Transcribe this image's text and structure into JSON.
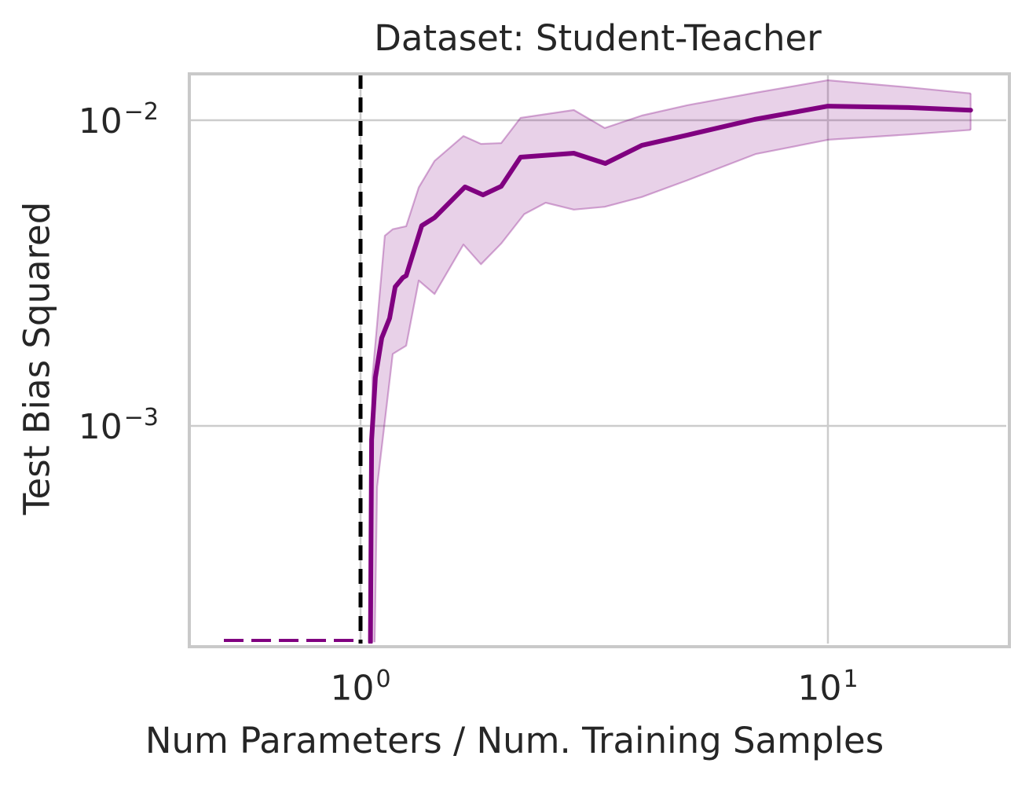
{
  "figure": {
    "background": "#ffffff",
    "text_color": "#262626"
  },
  "chart_data": {
    "type": "line",
    "title": "Dataset: Student-Teacher",
    "xlabel": "Num Parameters / Num. Training Samples",
    "ylabel": "Test Bias Squared",
    "x_scale": "log",
    "y_scale": "log",
    "xlim": [
      0.43,
      24.1
    ],
    "ylim": [
      0.000194,
      0.0142
    ],
    "grid": true,
    "legend": "none",
    "x_ticks": [
      {
        "value": 1,
        "label": "10⁰",
        "base": "10",
        "exp": "0"
      },
      {
        "value": 10,
        "label": "10¹",
        "base": "10",
        "exp": "1"
      }
    ],
    "y_ticks": [
      {
        "value": 0.01,
        "label": "10⁻²",
        "base": "10",
        "exp": "−2"
      },
      {
        "value": 0.001,
        "label": "10⁻³",
        "base": "10",
        "exp": "−3"
      }
    ],
    "colors": {
      "line": "#800080",
      "band_fill": "rgba(128,0,128,0.18)",
      "band_edge": "rgba(128,0,128,0.32)",
      "vline": "#000000",
      "grid": "#cccccc",
      "spine": "#c9c9c9"
    },
    "vline": {
      "x": 1.0,
      "style": "dashed",
      "color": "#000000",
      "meaning": "interpolation-threshold"
    },
    "series": [
      {
        "name": "test-bias-squared-mean",
        "color": "#800080",
        "points": [
          [
            1.05,
            0.000196
          ],
          [
            1.056,
            0.0009
          ],
          [
            1.076,
            0.00144
          ],
          [
            1.11,
            0.00194
          ],
          [
            1.154,
            0.00225
          ],
          [
            1.186,
            0.00285
          ],
          [
            1.233,
            0.00306
          ],
          [
            1.252,
            0.0031
          ],
          [
            1.352,
            0.00452
          ],
          [
            1.44,
            0.0048
          ],
          [
            1.673,
            0.00605
          ],
          [
            1.828,
            0.0057
          ],
          [
            2.0,
            0.00608
          ],
          [
            2.2,
            0.00757
          ],
          [
            2.86,
            0.0078
          ],
          [
            3.34,
            0.00722
          ],
          [
            4.0,
            0.00828
          ],
          [
            5.0,
            0.00894
          ],
          [
            6.96,
            0.01006
          ],
          [
            10.0,
            0.01112
          ],
          [
            14.9,
            0.011
          ],
          [
            20.2,
            0.01079
          ]
        ]
      }
    ],
    "band": {
      "name": "confidence-band",
      "upper": [
        [
          1.05,
          0.000196
        ],
        [
          1.06,
          0.00144
        ],
        [
          1.127,
          0.00419
        ],
        [
          1.172,
          0.0044
        ],
        [
          1.252,
          0.0045
        ],
        [
          1.332,
          0.00603
        ],
        [
          1.44,
          0.00736
        ],
        [
          1.66,
          0.00888
        ],
        [
          1.81,
          0.00837
        ],
        [
          2.0,
          0.00842
        ],
        [
          2.2,
          0.01018
        ],
        [
          2.86,
          0.0108
        ],
        [
          3.33,
          0.00943
        ],
        [
          4.0,
          0.01036
        ],
        [
          5.0,
          0.0112
        ],
        [
          7.0,
          0.0123
        ],
        [
          10.0,
          0.01352
        ],
        [
          15.0,
          0.0128
        ],
        [
          20.2,
          0.01224
        ]
      ],
      "lower": [
        [
          1.072,
          0.000196
        ],
        [
          1.085,
          0.000632
        ],
        [
          1.172,
          0.00172
        ],
        [
          1.252,
          0.00183
        ],
        [
          1.332,
          0.00299
        ],
        [
          1.44,
          0.0027
        ],
        [
          1.66,
          0.00392
        ],
        [
          1.81,
          0.00338
        ],
        [
          2.0,
          0.00395
        ],
        [
          2.24,
          0.00493
        ],
        [
          2.49,
          0.00537
        ],
        [
          2.86,
          0.0051
        ],
        [
          3.33,
          0.00521
        ],
        [
          4.0,
          0.00561
        ],
        [
          5.0,
          0.00636
        ],
        [
          7.0,
          0.00775
        ],
        [
          10.0,
          0.00863
        ],
        [
          15.0,
          0.00899
        ],
        [
          20.2,
          0.0093
        ]
      ]
    },
    "clipped_segment": {
      "comment": "mean curve below y-range for ratios < 1, drawn dashed along bottom axis",
      "x_range": [
        0.51,
        0.99
      ],
      "style": "dashed",
      "color": "#800080"
    }
  }
}
